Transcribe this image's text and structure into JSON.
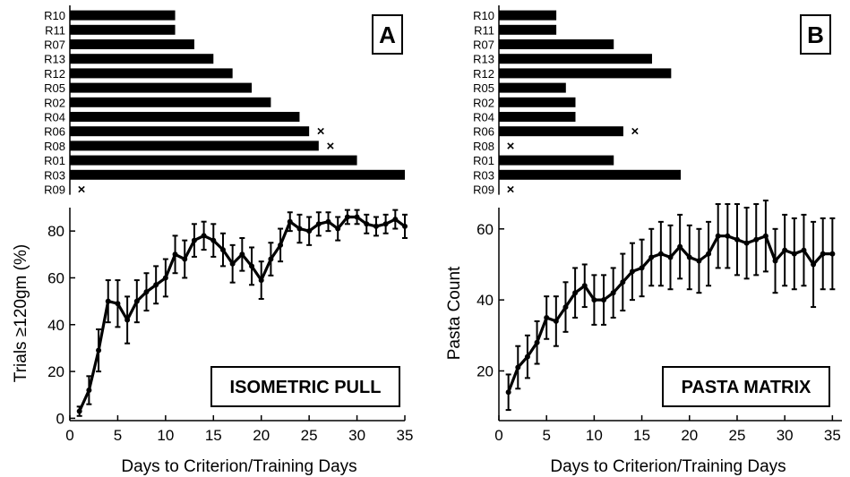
{
  "chart_data": [
    {
      "type": "bar",
      "orientation": "horizontal",
      "panel_label": "A",
      "categories": [
        "R10",
        "R11",
        "R07",
        "R13",
        "R12",
        "R05",
        "R02",
        "R04",
        "R06",
        "R08",
        "R01",
        "R03",
        "R09"
      ],
      "values": [
        11,
        11,
        13,
        15,
        17,
        19,
        21,
        24,
        25,
        26,
        30,
        35,
        0
      ],
      "marked_x": [
        "R06",
        "R08",
        "R09"
      ],
      "xlim": [
        0,
        35
      ]
    },
    {
      "type": "bar",
      "orientation": "horizontal",
      "panel_label": "B",
      "categories": [
        "R10",
        "R11",
        "R07",
        "R13",
        "R12",
        "R05",
        "R02",
        "R04",
        "R06",
        "R08",
        "R01",
        "R03",
        "R09"
      ],
      "values": [
        6,
        6,
        12,
        16,
        18,
        7,
        8,
        8,
        13,
        0,
        12,
        19,
        0
      ],
      "marked_x": [
        "R06",
        "R08",
        "R09"
      ],
      "xlim": [
        0,
        35
      ]
    },
    {
      "type": "line",
      "annotation": "ISOMETRIC PULL",
      "xlabel": "Days to Criterion/Training Days",
      "ylabel": "Trials ≥120gm (%)",
      "xlim": [
        0,
        35
      ],
      "ylim": [
        -1,
        90
      ],
      "xticks": [
        0,
        5,
        10,
        15,
        20,
        25,
        30,
        35
      ],
      "yticks": [
        0,
        20,
        40,
        60,
        80
      ],
      "x": [
        1,
        2,
        3,
        4,
        5,
        6,
        7,
        8,
        9,
        10,
        11,
        12,
        13,
        14,
        15,
        16,
        17,
        18,
        19,
        20,
        21,
        22,
        23,
        24,
        25,
        26,
        27,
        28,
        29,
        30,
        31,
        32,
        33,
        34,
        35
      ],
      "y": [
        3,
        12,
        29,
        50,
        49,
        42,
        50,
        54,
        57,
        60,
        70,
        68,
        76,
        78,
        76,
        72,
        66,
        70,
        65,
        59,
        68,
        74,
        84,
        81,
        80,
        83,
        84,
        81,
        86,
        86,
        83,
        82,
        83,
        85,
        82
      ],
      "error": [
        2,
        6,
        9,
        9,
        10,
        10,
        9,
        8,
        8,
        8,
        8,
        8,
        7,
        6,
        7,
        7,
        8,
        7,
        8,
        8,
        7,
        7,
        4,
        6,
        6,
        5,
        4,
        5,
        3,
        3,
        4,
        4,
        4,
        4,
        5
      ]
    },
    {
      "type": "line",
      "annotation": "PASTA MATRIX",
      "xlabel": "Days to Criterion/Training Days",
      "ylabel": "Pasta Count",
      "xlim": [
        0,
        36
      ],
      "ylim": [
        6,
        66
      ],
      "xticks": [
        0,
        5,
        10,
        15,
        20,
        25,
        30,
        35
      ],
      "yticks": [
        20,
        40,
        60
      ],
      "x": [
        1,
        2,
        3,
        4,
        5,
        6,
        7,
        8,
        9,
        10,
        11,
        12,
        13,
        14,
        15,
        16,
        17,
        18,
        19,
        20,
        21,
        22,
        23,
        24,
        25,
        26,
        27,
        28,
        29,
        30,
        31,
        32,
        33,
        34,
        35
      ],
      "y": [
        14,
        21,
        24,
        28,
        35,
        34,
        38,
        42,
        44,
        40,
        40,
        42,
        45,
        48,
        49,
        52,
        53,
        52,
        55,
        52,
        51,
        53,
        58,
        58,
        57,
        56,
        57,
        58,
        51,
        54,
        53,
        54,
        50,
        53,
        53
      ],
      "error": [
        5,
        6,
        6,
        6,
        6,
        7,
        7,
        7,
        6,
        7,
        7,
        7,
        8,
        8,
        8,
        8,
        9,
        9,
        9,
        9,
        9,
        9,
        9,
        9,
        10,
        10,
        10,
        10,
        9,
        10,
        10,
        10,
        12,
        10,
        10
      ]
    }
  ]
}
